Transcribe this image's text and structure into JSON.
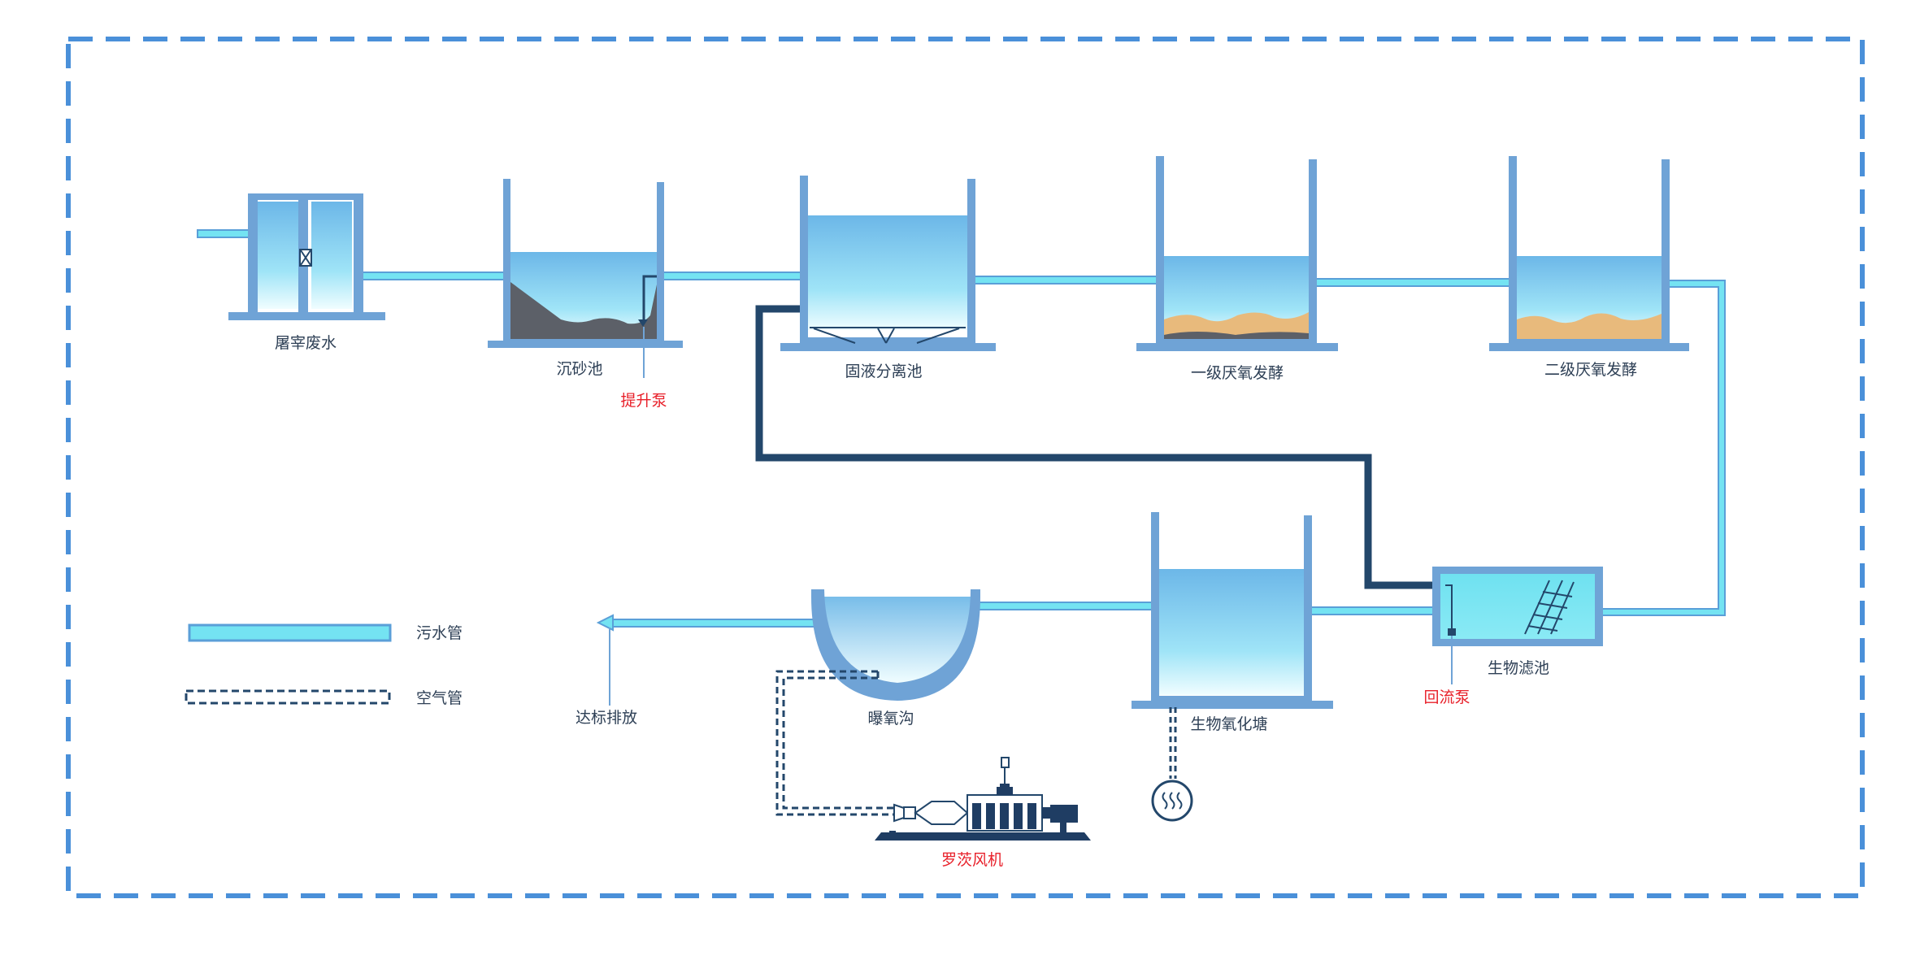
{
  "colors": {
    "frame": "#4a90d9",
    "wall": "#6fa3d6",
    "sewage_pipe": "#74e3f2",
    "sewage_pipe_edge": "#5a9fd8",
    "return_pipe": "#23476b",
    "sludge": "#5c6068",
    "sediment": "#e8ba7c",
    "water_top": "#6cb7e8",
    "water_bottom": "#eefcff",
    "pump_label": "#e8202a",
    "text": "#2d3f55",
    "machine": "#1f3d63"
  },
  "units": {
    "slaughter": "屠宰废水",
    "grit": "沉砂池",
    "separator": "固液分离池",
    "anaerobic1": "一级厌氧发酵",
    "anaerobic2": "二级厌氧发酵",
    "biofilter": "生物滤池",
    "oxpond": "生物氧化塘",
    "aeration": "曝氧沟"
  },
  "equipment": {
    "lift_pump": "提升泵",
    "return_pump": "回流泵",
    "blower": "罗茨风机"
  },
  "outlet": "达标排放",
  "legend": {
    "sewage": "污水管",
    "air": "空气管"
  },
  "icons": {
    "valve": "valve-icon",
    "heater": "heater-icon",
    "blower": "roots-blower-icon"
  }
}
